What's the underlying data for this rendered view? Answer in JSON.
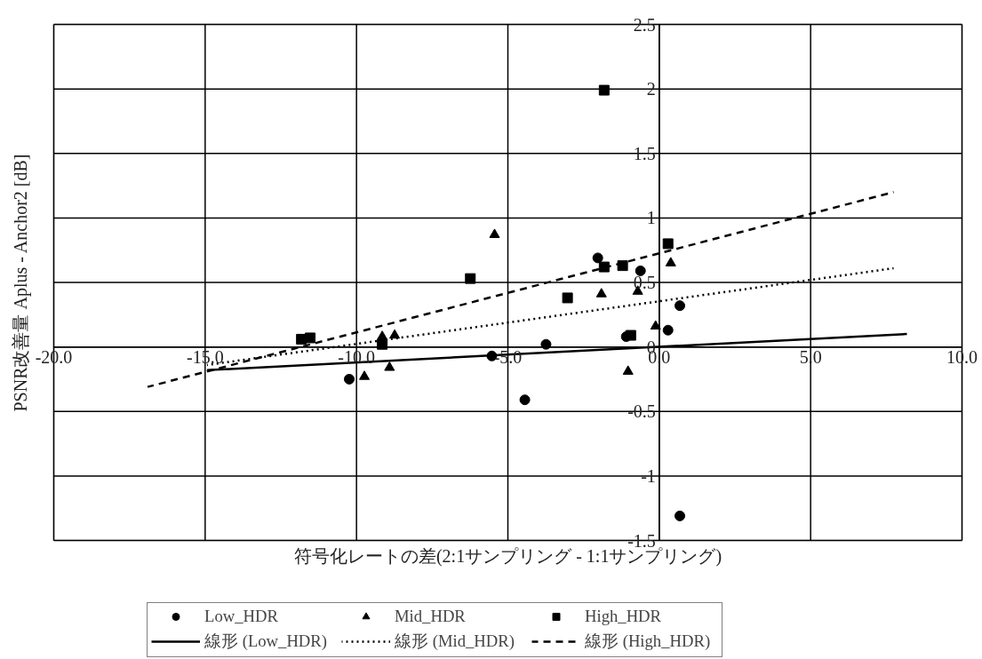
{
  "chart_data": {
    "type": "scatter",
    "xlabel": "符号化レートの差(2:1サンプリング - 1:1サンプリング)",
    "ylabel": "PSNR改善量 Aplus - Anchor2 [dB]",
    "xlim": [
      -20,
      10
    ],
    "ylim": [
      -1.5,
      2.5
    ],
    "xticks": [
      {
        "value": -20,
        "label": "-20.0"
      },
      {
        "value": -15,
        "label": "-15.0"
      },
      {
        "value": -10,
        "label": "-10.0"
      },
      {
        "value": -5,
        "label": "-5.0"
      },
      {
        "value": 0,
        "label": "0.0"
      },
      {
        "value": 5,
        "label": "5.0"
      },
      {
        "value": 10,
        "label": "10.0"
      }
    ],
    "yticks": [
      -1.5,
      -1,
      -0.5,
      0,
      0.5,
      1,
      1.5,
      2,
      2.5
    ],
    "grid": true,
    "legend": "bottom",
    "series": [
      {
        "name": "Low_HDR",
        "marker": "circle",
        "color": "#000000",
        "x": [
          -10.24,
          -5.53,
          -3.74,
          -4.44,
          -2.03,
          -0.62,
          0.68,
          0.29,
          -1.09,
          0.68
        ],
        "values": [
          -0.25,
          -0.07,
          0.02,
          -0.41,
          0.69,
          0.59,
          0.32,
          0.13,
          0.08,
          -1.31
        ]
      },
      {
        "name": "Mid_HDR",
        "marker": "triangle",
        "color": "#000000",
        "x": [
          -5.44,
          -9.74,
          -9.15,
          -8.74,
          -8.91,
          -1.91,
          -0.71,
          -1.03,
          -0.12,
          0.38
        ],
        "values": [
          0.87,
          -0.23,
          0.08,
          0.09,
          -0.16,
          0.41,
          0.43,
          -0.19,
          0.16,
          0.65
        ]
      },
      {
        "name": "High_HDR",
        "marker": "square",
        "color": "#000000",
        "x": [
          -11.82,
          -11.53,
          -9.15,
          -6.24,
          -3.03,
          -1.82,
          -1.21,
          -0.94,
          0.29,
          -1.82
        ],
        "values": [
          0.06,
          0.07,
          0.02,
          0.53,
          0.38,
          0.62,
          0.63,
          0.09,
          0.8,
          1.99
        ]
      },
      {
        "name": "線形 (Low_HDR)",
        "type": "line",
        "line_style": "solid",
        "color": "#000000",
        "x": [
          -14.94,
          8.18
        ],
        "values": [
          -0.18,
          0.1
        ]
      },
      {
        "name": "線形 (Mid_HDR)",
        "type": "line",
        "line_style": "dotted",
        "color": "#000000",
        "x": [
          -14.94,
          7.74
        ],
        "values": [
          -0.14,
          0.61
        ]
      },
      {
        "name": "線形 (High_HDR)",
        "type": "line",
        "line_style": "dashed",
        "color": "#000000",
        "x": [
          -16.9,
          7.74
        ],
        "values": [
          -0.31,
          1.2
        ]
      }
    ]
  }
}
